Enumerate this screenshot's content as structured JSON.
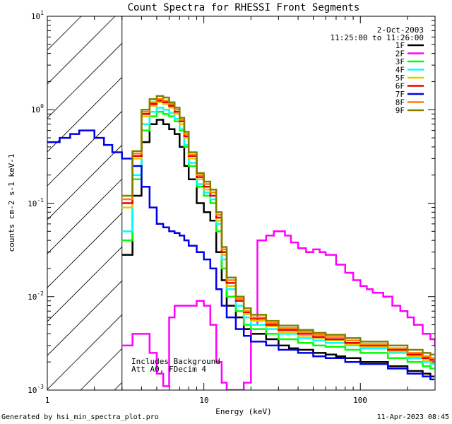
{
  "chart_data": {
    "type": "line",
    "title": "Count Spectra for RHESSI Front Segments",
    "xlabel": "Energy (keV)",
    "ylabel": "counts cm-2 s-1 keV-1",
    "xscale": "log",
    "yscale": "log",
    "xlim": [
      1,
      300
    ],
    "ylim": [
      0.001,
      10
    ],
    "x_tick_labels": [
      "1",
      "10",
      "100"
    ],
    "y_tick_labels": [
      {
        "base": "10",
        "exp": "1"
      },
      {
        "base": "10",
        "exp": "0"
      },
      {
        "base": "10",
        "exp": "-1"
      },
      {
        "base": "10",
        "exp": "-2"
      },
      {
        "base": "10",
        "exp": "-3"
      }
    ],
    "date": "2-Oct-2003",
    "time_range": "11:25:00 to 11:26:00",
    "hatched_region_max_keV": 3,
    "annotation": [
      "Includes Background",
      "Att A0, FDecim 4"
    ],
    "series": [
      {
        "name": "1F",
        "color": "#000000",
        "points": [
          [
            3,
            0.028
          ],
          [
            3.5,
            0.12
          ],
          [
            4,
            0.45
          ],
          [
            4.5,
            0.7
          ],
          [
            5,
            0.78
          ],
          [
            5.5,
            0.7
          ],
          [
            6,
            0.62
          ],
          [
            6.5,
            0.55
          ],
          [
            7,
            0.4
          ],
          [
            7.5,
            0.25
          ],
          [
            8,
            0.18
          ],
          [
            9,
            0.1
          ],
          [
            10,
            0.08
          ],
          [
            11,
            0.065
          ],
          [
            12,
            0.03
          ],
          [
            13,
            0.015
          ],
          [
            14,
            0.008
          ],
          [
            16,
            0.006
          ],
          [
            18,
            0.0045
          ],
          [
            20,
            0.004
          ],
          [
            25,
            0.0035
          ],
          [
            30,
            0.003
          ],
          [
            35,
            0.0028
          ],
          [
            40,
            0.0027
          ],
          [
            50,
            0.0025
          ],
          [
            60,
            0.0024
          ],
          [
            70,
            0.0023
          ],
          [
            80,
            0.0022
          ],
          [
            100,
            0.002
          ],
          [
            120,
            0.002
          ],
          [
            150,
            0.0018
          ],
          [
            200,
            0.0016
          ],
          [
            250,
            0.0015
          ],
          [
            280,
            0.0014
          ]
        ]
      },
      {
        "name": "2F",
        "color": "#ff00ff",
        "points": [
          [
            3,
            0.003
          ],
          [
            3.5,
            0.004
          ],
          [
            4,
            0.004
          ],
          [
            4.5,
            0.0025
          ],
          [
            5,
            0.0015
          ],
          [
            5.5,
            0.0011
          ],
          [
            6,
            0.006
          ],
          [
            6.5,
            0.008
          ],
          [
            7,
            0.008
          ],
          [
            8,
            0.008
          ],
          [
            9,
            0.009
          ],
          [
            10,
            0.008
          ],
          [
            11,
            0.005
          ],
          [
            12,
            0.002
          ],
          [
            13,
            0.0012
          ],
          [
            14,
            0.001
          ],
          [
            16,
            0.001
          ],
          [
            18,
            0.0012
          ],
          [
            20,
            0.005
          ],
          [
            22,
            0.04
          ],
          [
            25,
            0.045
          ],
          [
            28,
            0.05
          ],
          [
            30,
            0.05
          ],
          [
            33,
            0.045
          ],
          [
            36,
            0.038
          ],
          [
            40,
            0.033
          ],
          [
            45,
            0.03
          ],
          [
            50,
            0.032
          ],
          [
            55,
            0.03
          ],
          [
            60,
            0.028
          ],
          [
            70,
            0.022
          ],
          [
            80,
            0.018
          ],
          [
            90,
            0.015
          ],
          [
            100,
            0.013
          ],
          [
            110,
            0.012
          ],
          [
            120,
            0.011
          ],
          [
            140,
            0.01
          ],
          [
            160,
            0.008
          ],
          [
            180,
            0.007
          ],
          [
            200,
            0.006
          ],
          [
            220,
            0.005
          ],
          [
            250,
            0.004
          ],
          [
            280,
            0.0035
          ],
          [
            300,
            0.003
          ]
        ]
      },
      {
        "name": "3F",
        "color": "#00ff00",
        "points": [
          [
            3,
            0.04
          ],
          [
            3.5,
            0.18
          ],
          [
            4,
            0.6
          ],
          [
            4.5,
            0.85
          ],
          [
            5,
            0.95
          ],
          [
            5.5,
            0.9
          ],
          [
            6,
            0.85
          ],
          [
            6.5,
            0.75
          ],
          [
            7,
            0.6
          ],
          [
            7.5,
            0.4
          ],
          [
            8,
            0.25
          ],
          [
            9,
            0.15
          ],
          [
            10,
            0.12
          ],
          [
            11,
            0.1
          ],
          [
            12,
            0.05
          ],
          [
            13,
            0.02
          ],
          [
            14,
            0.01
          ],
          [
            16,
            0.007
          ],
          [
            18,
            0.005
          ],
          [
            20,
            0.0045
          ],
          [
            25,
            0.004
          ],
          [
            30,
            0.0035
          ],
          [
            40,
            0.0032
          ],
          [
            50,
            0.003
          ],
          [
            60,
            0.0029
          ],
          [
            80,
            0.0027
          ],
          [
            100,
            0.0025
          ],
          [
            150,
            0.0022
          ],
          [
            200,
            0.002
          ],
          [
            250,
            0.0018
          ],
          [
            280,
            0.0017
          ]
        ]
      },
      {
        "name": "4F",
        "color": "#00ffff",
        "points": [
          [
            3,
            0.05
          ],
          [
            3.5,
            0.2
          ],
          [
            4,
            0.7
          ],
          [
            4.5,
            0.95
          ],
          [
            5,
            1.05
          ],
          [
            5.5,
            1.0
          ],
          [
            6,
            0.92
          ],
          [
            6.5,
            0.8
          ],
          [
            7,
            0.62
          ],
          [
            7.5,
            0.42
          ],
          [
            8,
            0.27
          ],
          [
            9,
            0.16
          ],
          [
            10,
            0.13
          ],
          [
            11,
            0.11
          ],
          [
            12,
            0.06
          ],
          [
            13,
            0.025
          ],
          [
            14,
            0.012
          ],
          [
            16,
            0.008
          ],
          [
            18,
            0.006
          ],
          [
            20,
            0.005
          ],
          [
            25,
            0.0045
          ],
          [
            30,
            0.004
          ],
          [
            40,
            0.0036
          ],
          [
            50,
            0.0034
          ],
          [
            60,
            0.0032
          ],
          [
            80,
            0.003
          ],
          [
            100,
            0.0028
          ],
          [
            150,
            0.0025
          ],
          [
            200,
            0.0022
          ],
          [
            250,
            0.002
          ],
          [
            280,
            0.0019
          ]
        ]
      },
      {
        "name": "5F",
        "color": "#e6c800",
        "points": [
          [
            3,
            0.09
          ],
          [
            3.5,
            0.3
          ],
          [
            4,
            0.85
          ],
          [
            4.5,
            1.1
          ],
          [
            5,
            1.2
          ],
          [
            5.5,
            1.15
          ],
          [
            6,
            1.05
          ],
          [
            6.5,
            0.9
          ],
          [
            7,
            0.7
          ],
          [
            7.5,
            0.5
          ],
          [
            8,
            0.3
          ],
          [
            9,
            0.18
          ],
          [
            10,
            0.14
          ],
          [
            11,
            0.12
          ],
          [
            12,
            0.065
          ],
          [
            13,
            0.028
          ],
          [
            14,
            0.013
          ],
          [
            16,
            0.009
          ],
          [
            18,
            0.0065
          ],
          [
            20,
            0.0055
          ],
          [
            25,
            0.0048
          ],
          [
            30,
            0.0042
          ],
          [
            40,
            0.0038
          ],
          [
            50,
            0.0036
          ],
          [
            60,
            0.0034
          ],
          [
            80,
            0.0031
          ],
          [
            100,
            0.0029
          ],
          [
            150,
            0.0026
          ],
          [
            200,
            0.0023
          ],
          [
            250,
            0.0021
          ],
          [
            280,
            0.002
          ]
        ]
      },
      {
        "name": "6F",
        "color": "#e60000",
        "points": [
          [
            3,
            0.1
          ],
          [
            3.5,
            0.32
          ],
          [
            4,
            0.9
          ],
          [
            4.5,
            1.15
          ],
          [
            5,
            1.25
          ],
          [
            5.5,
            1.2
          ],
          [
            6,
            1.1
          ],
          [
            6.5,
            0.95
          ],
          [
            7,
            0.75
          ],
          [
            7.5,
            0.52
          ],
          [
            8,
            0.32
          ],
          [
            9,
            0.19
          ],
          [
            10,
            0.15
          ],
          [
            11,
            0.12
          ],
          [
            12,
            0.07
          ],
          [
            13,
            0.03
          ],
          [
            14,
            0.014
          ],
          [
            16,
            0.009
          ],
          [
            18,
            0.0068
          ],
          [
            20,
            0.0058
          ],
          [
            25,
            0.005
          ],
          [
            30,
            0.0044
          ],
          [
            40,
            0.004
          ],
          [
            50,
            0.0037
          ],
          [
            60,
            0.0035
          ],
          [
            80,
            0.0032
          ],
          [
            100,
            0.003
          ],
          [
            150,
            0.0027
          ],
          [
            200,
            0.0024
          ],
          [
            250,
            0.0022
          ],
          [
            280,
            0.0021
          ]
        ]
      },
      {
        "name": "7F",
        "color": "#0000e6",
        "points": [
          [
            1,
            0.45
          ],
          [
            1.2,
            0.5
          ],
          [
            1.4,
            0.55
          ],
          [
            1.6,
            0.6
          ],
          [
            1.8,
            0.6
          ],
          [
            2,
            0.5
          ],
          [
            2.3,
            0.42
          ],
          [
            2.6,
            0.35
          ],
          [
            3,
            0.3
          ],
          [
            3.5,
            0.25
          ],
          [
            4,
            0.15
          ],
          [
            4.5,
            0.09
          ],
          [
            5,
            0.06
          ],
          [
            5.5,
            0.055
          ],
          [
            6,
            0.05
          ],
          [
            6.5,
            0.048
          ],
          [
            7,
            0.045
          ],
          [
            7.5,
            0.04
          ],
          [
            8,
            0.035
          ],
          [
            9,
            0.03
          ],
          [
            10,
            0.025
          ],
          [
            11,
            0.02
          ],
          [
            12,
            0.012
          ],
          [
            13,
            0.008
          ],
          [
            14,
            0.006
          ],
          [
            16,
            0.0045
          ],
          [
            18,
            0.0038
          ],
          [
            20,
            0.0033
          ],
          [
            25,
            0.003
          ],
          [
            30,
            0.0027
          ],
          [
            40,
            0.0025
          ],
          [
            50,
            0.0023
          ],
          [
            60,
            0.0022
          ],
          [
            80,
            0.002
          ],
          [
            100,
            0.0019
          ],
          [
            150,
            0.0017
          ],
          [
            200,
            0.0015
          ],
          [
            250,
            0.0014
          ],
          [
            280,
            0.0013
          ]
        ]
      },
      {
        "name": "8F",
        "color": "#ff8000",
        "points": [
          [
            3,
            0.11
          ],
          [
            3.5,
            0.34
          ],
          [
            4,
            0.95
          ],
          [
            4.5,
            1.2
          ],
          [
            5,
            1.3
          ],
          [
            5.5,
            1.25
          ],
          [
            6,
            1.15
          ],
          [
            6.5,
            1.0
          ],
          [
            7,
            0.78
          ],
          [
            7.5,
            0.55
          ],
          [
            8,
            0.33
          ],
          [
            9,
            0.2
          ],
          [
            10,
            0.16
          ],
          [
            11,
            0.13
          ],
          [
            12,
            0.075
          ],
          [
            13,
            0.032
          ],
          [
            14,
            0.015
          ],
          [
            16,
            0.0095
          ],
          [
            18,
            0.007
          ],
          [
            20,
            0.006
          ],
          [
            25,
            0.0052
          ],
          [
            30,
            0.0046
          ],
          [
            40,
            0.0042
          ],
          [
            50,
            0.0039
          ],
          [
            60,
            0.0037
          ],
          [
            80,
            0.0034
          ],
          [
            100,
            0.0031
          ],
          [
            150,
            0.0028
          ],
          [
            200,
            0.0025
          ],
          [
            250,
            0.0023
          ],
          [
            280,
            0.0022
          ]
        ]
      },
      {
        "name": "9F",
        "color": "#808000",
        "points": [
          [
            3,
            0.12
          ],
          [
            3.5,
            0.36
          ],
          [
            4,
            1.0
          ],
          [
            4.5,
            1.3
          ],
          [
            5,
            1.4
          ],
          [
            5.5,
            1.35
          ],
          [
            6,
            1.2
          ],
          [
            6.5,
            1.05
          ],
          [
            7,
            0.82
          ],
          [
            7.5,
            0.58
          ],
          [
            8,
            0.35
          ],
          [
            9,
            0.21
          ],
          [
            10,
            0.17
          ],
          [
            11,
            0.14
          ],
          [
            12,
            0.08
          ],
          [
            13,
            0.034
          ],
          [
            14,
            0.016
          ],
          [
            16,
            0.01
          ],
          [
            18,
            0.0075
          ],
          [
            20,
            0.0064
          ],
          [
            25,
            0.0055
          ],
          [
            30,
            0.0049
          ],
          [
            40,
            0.0044
          ],
          [
            50,
            0.0041
          ],
          [
            60,
            0.0039
          ],
          [
            80,
            0.0036
          ],
          [
            100,
            0.0033
          ],
          [
            150,
            0.003
          ],
          [
            200,
            0.0027
          ],
          [
            250,
            0.0025
          ],
          [
            280,
            0.0024
          ]
        ]
      }
    ]
  },
  "footer": {
    "left": "Generated by hsi_min_spectra_plot.pro",
    "right": "11-Apr-2023 08:45"
  }
}
